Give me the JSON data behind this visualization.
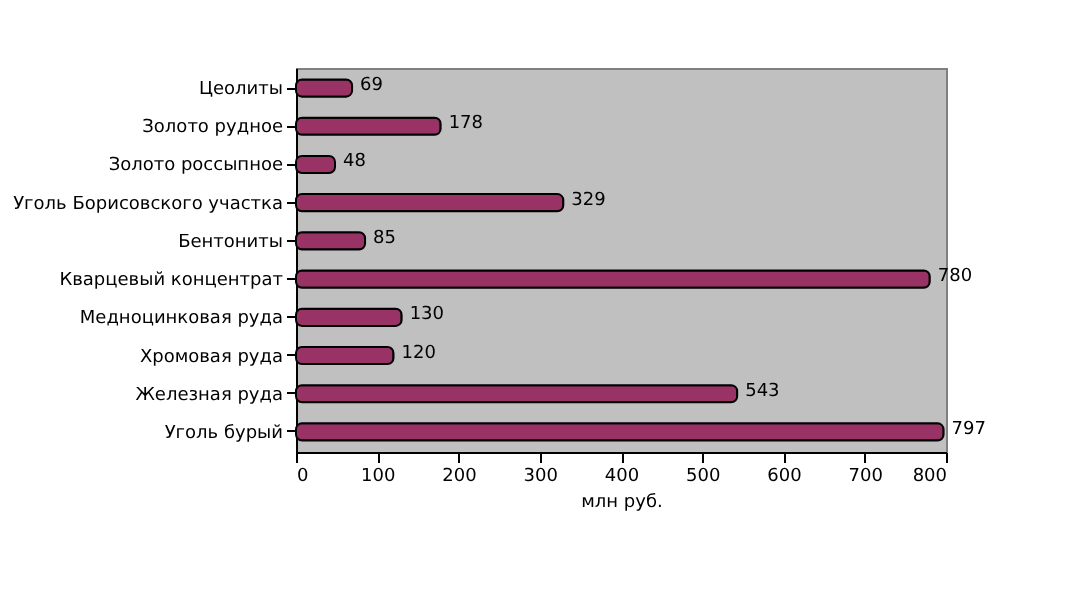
{
  "chart_data": {
    "type": "bar",
    "orientation": "horizontal",
    "xlabel": "млн руб.",
    "categories": [
      "Цеолиты",
      "Золото рудное",
      "Золото россыпное",
      "Уголь Борисовского участка",
      "Бентониты",
      "Кварцевый концентрат",
      "Медноцинковая руда",
      "Хромовая руда",
      "Железная руда",
      "Уголь бурый"
    ],
    "values": [
      69,
      178,
      48,
      329,
      85,
      780,
      130,
      120,
      543,
      797
    ],
    "color": "#993366",
    "xlim": [
      0,
      800
    ],
    "xticks": [
      0,
      100,
      200,
      300,
      400,
      500,
      600,
      700,
      800
    ],
    "data_labels": true,
    "grid": false
  }
}
